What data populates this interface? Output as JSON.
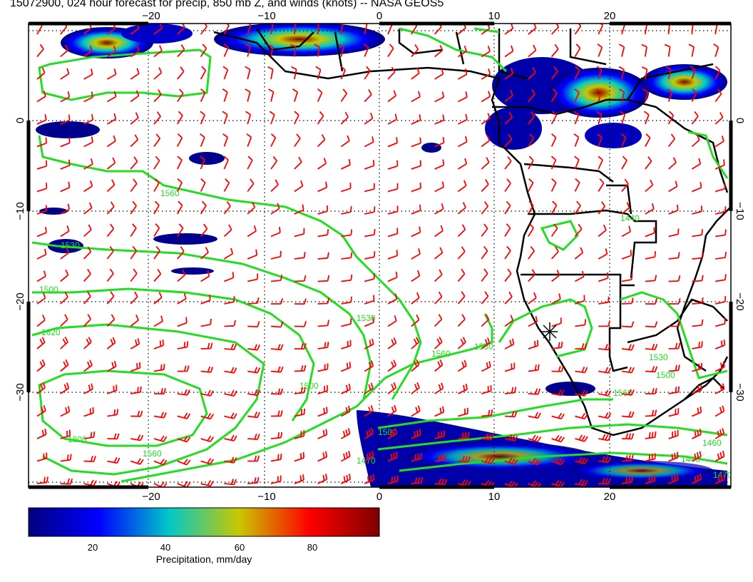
{
  "title": "15072900, 024 hour forecast for precip, 850 mb Z, and winds (knots) -- NASA GEOS5",
  "axes": {
    "lon_ticks": [
      "−20",
      "−10",
      "0",
      "10",
      "20"
    ],
    "lat_ticks": [
      "0",
      "−10",
      "−20",
      "−30"
    ],
    "lon_range": [
      -30,
      30
    ],
    "lat_range": [
      -40,
      10
    ]
  },
  "contours": {
    "labels": [
      "1560",
      "1530",
      "1500",
      "1620",
      "1600",
      "1560",
      "1530",
      "1500",
      "1560",
      "1530",
      "1500",
      "1470",
      "1460",
      "1440",
      "1530",
      "1500",
      "1560",
      "1470",
      "1440"
    ],
    "color": "#22dd22"
  },
  "colorbar": {
    "ticks": [
      "20",
      "40",
      "60",
      "80"
    ],
    "title": "Precipitation, mm/day",
    "colors": [
      "#00007f",
      "#0000ff",
      "#00c8c8",
      "#c8c800",
      "#ff0000",
      "#7f0000"
    ]
  },
  "colors": {
    "wind_barbs": "#ff0000",
    "coastline": "#000000",
    "contour": "#22dd22"
  },
  "map_features": {
    "marker": "location-star"
  }
}
